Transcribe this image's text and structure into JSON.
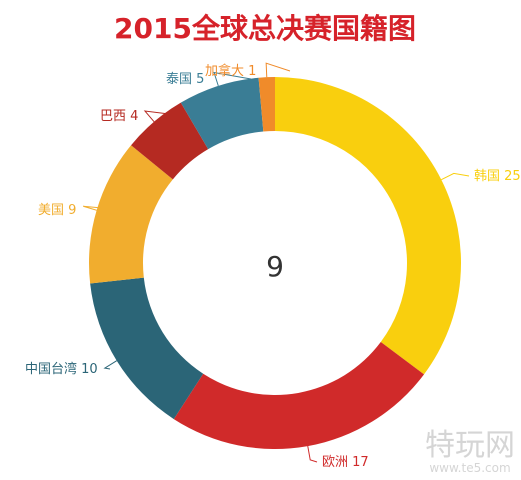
{
  "chart_data": {
    "type": "pie",
    "title": "2015全球总决赛国籍图",
    "center_label": "9",
    "slices": [
      {
        "label": "韩国",
        "value": 25,
        "color": "#f9cf0e"
      },
      {
        "label": "欧洲",
        "value": 17,
        "color": "#d02a2a"
      },
      {
        "label": "中国台湾",
        "value": 10,
        "color": "#2b6577"
      },
      {
        "label": "美国",
        "value": 9,
        "color": "#f1ad2e"
      },
      {
        "label": "巴西",
        "value": 4,
        "color": "#b52a22"
      },
      {
        "label": "泰国",
        "value": 5,
        "color": "#3a7d95"
      },
      {
        "label": "加拿大",
        "value": 1,
        "color": "#f08b2a"
      }
    ]
  },
  "colors": {
    "title": "#d6222a",
    "center_text": "#333333"
  },
  "watermark": {
    "text": "特玩网",
    "url": "www.te5.com"
  }
}
